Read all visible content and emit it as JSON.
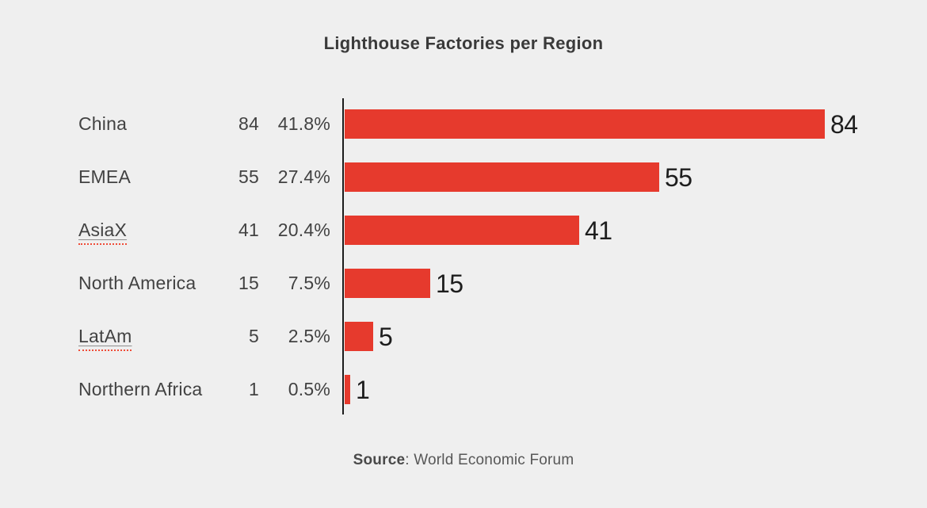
{
  "title": "Lighthouse Factories per Region",
  "source": {
    "label": "Source",
    "rest": ": World Economic Forum"
  },
  "colors": {
    "background": "#efefef",
    "bar": "#e63a2d",
    "axis": "#1c1c1c",
    "title_text": "#3a3a3a",
    "label_text": "#424242",
    "bar_value_text": "#1d1d1d",
    "source_text": "#575757",
    "spellcheck_squiggle": "#ef4c38"
  },
  "chart_data": {
    "type": "bar",
    "orientation": "horizontal",
    "title": "Lighthouse Factories per Region",
    "categories": [
      "China",
      "EMEA",
      "AsiaX",
      "North America",
      "LatAm",
      "Northern Africa"
    ],
    "values": [
      84,
      55,
      41,
      15,
      5,
      1
    ],
    "percent_labels": [
      "41.8%",
      "27.4%",
      "20.4%",
      "7.5%",
      "2.5%",
      "0.5%"
    ],
    "bar_end_labels": [
      "84",
      "55",
      "41",
      "15",
      "5",
      "1"
    ],
    "xlim": [
      0,
      84
    ],
    "grid": false,
    "legend": false,
    "spellcheck_flagged_indices": [
      2,
      4
    ],
    "source_note": "Source: World Economic Forum"
  }
}
